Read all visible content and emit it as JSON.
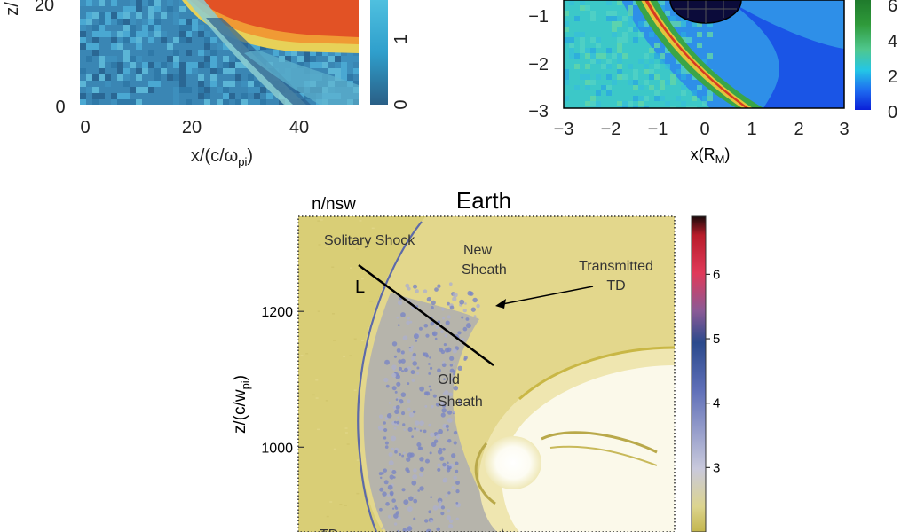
{
  "chart_data": [
    {
      "type": "heatmap",
      "panel": "top-left",
      "xlabel": "x/(c/ω",
      "xlabel_sub": "pi",
      "xlabel_close": ")",
      "ylabel_fragment": "z/",
      "x_ticks": [
        "0",
        "20",
        "40"
      ],
      "y_ticks": [
        "0",
        "20"
      ],
      "xlim": [
        0,
        50
      ],
      "ylim": [
        0,
        30
      ],
      "colorbar_ticks": [
        "0",
        "1"
      ],
      "colorbar_range": [
        0,
        2
      ],
      "colors": [
        "#2a6f9a",
        "#3fa6d0",
        "#9cd3cf",
        "#e8d25a",
        "#f08a2c",
        "#e04a24"
      ]
    },
    {
      "type": "heatmap",
      "panel": "top-right",
      "xlabel": "x(R",
      "xlabel_sub": "M",
      "xlabel_close": ")",
      "x_ticks": [
        "−3",
        "−2",
        "−1",
        "0",
        "1",
        "2",
        "3"
      ],
      "y_ticks": [
        "−1",
        "−2",
        "−3"
      ],
      "xlim": [
        -3,
        3
      ],
      "ylim": [
        -3,
        0
      ],
      "colorbar_ticks": [
        "6",
        "4",
        "2",
        "0"
      ],
      "colorbar_range": [
        0,
        7
      ],
      "colors": [
        "#0a1fd8",
        "#1e6cf0",
        "#24c6e6",
        "#5dd6a0",
        "#2f9a3a",
        "#e0d040",
        "#e03020"
      ]
    },
    {
      "type": "heatmap",
      "panel": "bottom",
      "title": "Earth",
      "quantity_label": "n/nsw",
      "ylabel": "z/(c/w",
      "ylabel_sub": "pi",
      "ylabel_close": ")",
      "y_ticks": [
        "1200",
        "1000"
      ],
      "y_tick_values": [
        1200,
        1000
      ],
      "ylim": [
        875,
        1340
      ],
      "colorbar_ticks": [
        "6",
        "5",
        "4",
        "3"
      ],
      "colorbar_tick_values": [
        6,
        5,
        4,
        3
      ],
      "colorbar_range": [
        2,
        6.9
      ],
      "annotations": {
        "solitary_shock": "Solitary Shock",
        "new_sheath_1": "New",
        "new_sheath_2": "Sheath",
        "transmitted_1": "Transmitted",
        "transmitted_2": "TD",
        "cut_label": "L",
        "old_sheath_1": "Old",
        "old_sheath_2": "Sheath",
        "bottom_left_partial": "TD",
        "bottom_mid_partial": "\\"
      },
      "colors": {
        "background": "#d8cd72",
        "sheath": "#e6d786",
        "old_sheath": "#8c93c6",
        "magnetosphere": "#fbfaee",
        "shock_line": "#5d6aa8"
      }
    }
  ]
}
